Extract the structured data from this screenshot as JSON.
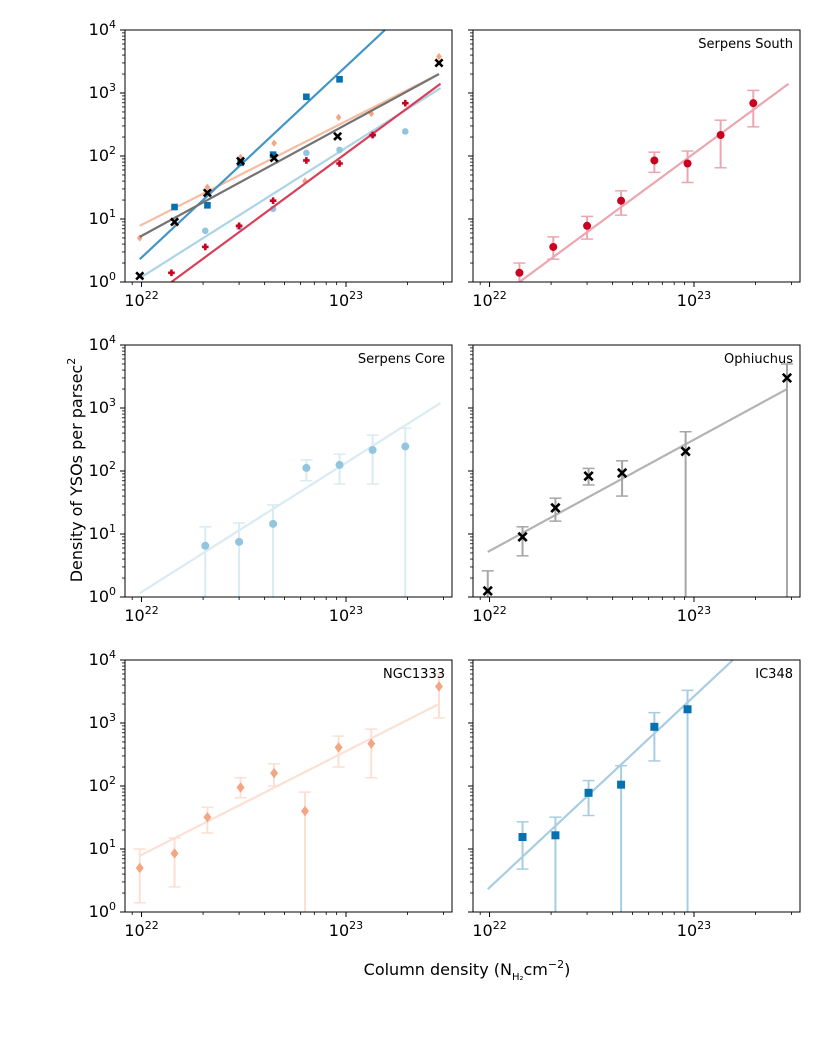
{
  "figure": {
    "ylabel_text": "Density of YSOs per parsec",
    "ylabel_sup": "2",
    "xlabel_prefix": "Column density (N",
    "xlabel_sub": "H₂",
    "xlabel_unit": "cm",
    "xlabel_sup": "−2",
    "xlabel_suffix": ")"
  },
  "colors": {
    "serpens_south": "#ca0020",
    "serpens_core": "#92c5de",
    "ophiuchus": "#000000",
    "ngc1333": "#f4a582",
    "ic348": "#0571b0"
  },
  "chart_data": [
    {
      "type": "scatter",
      "panel": "combined",
      "title": "",
      "xscale": "log",
      "yscale": "log",
      "xlim": [
        8.3e+21,
        3.3e+23
      ],
      "ylim": [
        1,
        10000
      ],
      "x_ticks": [
        "10^22",
        "10^23"
      ],
      "y_ticks": [
        "10^0",
        "10^1",
        "10^2",
        "10^3",
        "10^4"
      ],
      "series": [
        "Serpens South",
        "Serpens Core",
        "Ophiuchus",
        "NGC1333",
        "IC348"
      ]
    },
    {
      "type": "scatter",
      "panel": "serpens-south",
      "title": "Serpens South",
      "color_key": "serpens_south",
      "marker": "circle",
      "xscale": "log",
      "yscale": "log",
      "xlim": [
        8.3e+21,
        3.3e+23
      ],
      "ylim": [
        1,
        10000
      ],
      "x": [
        1.4e+22,
        2.05e+22,
        3e+22,
        4.4e+22,
        6.4e+22,
        9.3e+22,
        1.35e+23,
        1.95e+23
      ],
      "y": [
        1.4,
        3.6,
        7.8,
        19.5,
        85,
        76,
        215,
        690
      ],
      "yerr_low": [
        1.0,
        2.3,
        4.8,
        11.5,
        55,
        38,
        65,
        290
      ],
      "yerr_high": [
        2.0,
        5.2,
        11.0,
        28,
        115,
        120,
        370,
        1100
      ],
      "fit": {
        "x": [
          1.4e+22,
          2.9e+23
        ],
        "y": [
          1.0,
          1400
        ]
      }
    },
    {
      "type": "scatter",
      "panel": "serpens-core",
      "title": "Serpens Core",
      "color_key": "serpens_core",
      "marker": "circle",
      "xscale": "log",
      "yscale": "log",
      "xlim": [
        8.3e+21,
        3.3e+23
      ],
      "ylim": [
        1,
        10000
      ],
      "x": [
        2.05e+22,
        3e+22,
        4.4e+22,
        6.4e+22,
        9.3e+22,
        1.35e+23,
        1.95e+23
      ],
      "y": [
        6.5,
        7.5,
        14.5,
        112,
        125,
        215,
        245
      ],
      "yerr_low": [
        1,
        1,
        1,
        70,
        62,
        62,
        1
      ],
      "yerr_high": [
        13,
        15,
        29,
        150,
        185,
        370,
        480
      ],
      "fit": {
        "x": [
          9.8e+21,
          2.9e+23
        ],
        "y": [
          1.15,
          1200
        ]
      }
    },
    {
      "type": "scatter",
      "panel": "ophiuchus",
      "title": "Ophiuchus",
      "color_key": "ophiuchus",
      "marker": "x",
      "xscale": "log",
      "yscale": "log",
      "xlim": [
        8.3e+21,
        3.3e+23
      ],
      "ylim": [
        1,
        10000
      ],
      "x": [
        9.8e+21,
        1.45e+22,
        2.1e+22,
        3.05e+22,
        4.45e+22,
        9.1e+22,
        2.85e+23
      ],
      "y": [
        1.25,
        9,
        26,
        83,
        93,
        205,
        3000
      ],
      "yerr_low": [
        1,
        4.5,
        16,
        60,
        40,
        1,
        1
      ],
      "yerr_high": [
        2.6,
        13,
        37,
        110,
        145,
        420,
        5000
      ],
      "fit": {
        "x": [
          9.8e+21,
          2.85e+23
        ],
        "y": [
          5.2,
          2000
        ]
      }
    },
    {
      "type": "scatter",
      "panel": "ngc1333",
      "title": "NGC1333",
      "color_key": "ngc1333",
      "marker": "diamond",
      "xscale": "log",
      "yscale": "log",
      "xlim": [
        8.3e+21,
        3.3e+23
      ],
      "ylim": [
        1,
        10000
      ],
      "x": [
        9.8e+21,
        1.45e+22,
        2.1e+22,
        3.05e+22,
        4.45e+22,
        6.3e+22,
        9.2e+22,
        1.33e+23,
        2.85e+23
      ],
      "y": [
        5,
        8.5,
        32,
        95,
        160,
        40,
        410,
        470,
        3800
      ],
      "yerr_low": [
        1.4,
        2.5,
        18,
        65,
        100,
        1,
        200,
        135,
        1200
      ],
      "yerr_high": [
        10,
        15,
        46,
        135,
        225,
        80,
        620,
        800,
        6000
      ],
      "fit": {
        "x": [
          9.8e+21,
          2.85e+23
        ],
        "y": [
          7.8,
          2000
        ]
      }
    },
    {
      "type": "scatter",
      "panel": "ic348",
      "title": "IC348",
      "color_key": "ic348",
      "marker": "square",
      "xscale": "log",
      "yscale": "log",
      "xlim": [
        8.3e+21,
        3.3e+23
      ],
      "ylim": [
        1,
        10000
      ],
      "x": [
        1.45e+22,
        2.1e+22,
        3.05e+22,
        4.4e+22,
        6.4e+22,
        9.3e+22
      ],
      "y": [
        15.5,
        16.5,
        78,
        105,
        870,
        1650
      ],
      "yerr_low": [
        4.8,
        1,
        34,
        1,
        250,
        1
      ],
      "yerr_high": [
        27,
        32,
        122,
        210,
        1460,
        3300
      ],
      "fit": {
        "x": [
          9.8e+21,
          1.55e+23
        ],
        "y": [
          2.3,
          10000
        ]
      }
    }
  ]
}
